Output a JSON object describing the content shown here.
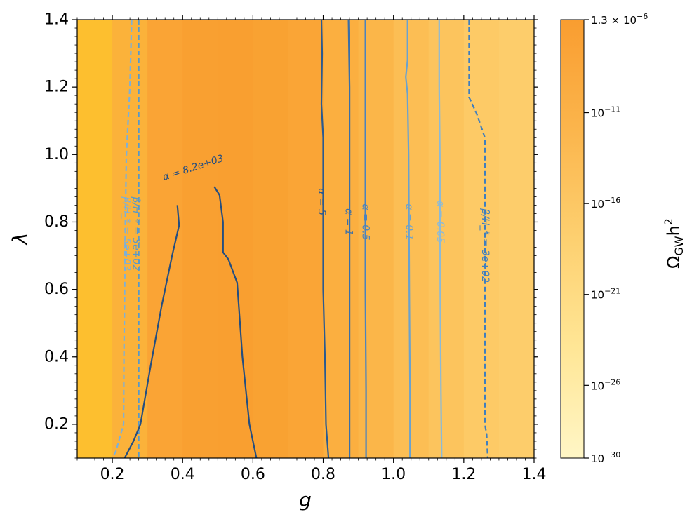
{
  "chart_data": {
    "type": "contour",
    "xlabel": "g",
    "ylabel": "λ",
    "xlim": [
      0.1,
      1.4
    ],
    "ylim": [
      0.1,
      1.4
    ],
    "x_ticks": [
      {
        "value": 0.2,
        "label": "0.2"
      },
      {
        "value": 0.4,
        "label": "0.4"
      },
      {
        "value": 0.6,
        "label": "0.6"
      },
      {
        "value": 0.8,
        "label": "0.8"
      },
      {
        "value": 1.0,
        "label": "1.0"
      },
      {
        "value": 1.2,
        "label": "1.2"
      },
      {
        "value": 1.4,
        "label": "1.4"
      }
    ],
    "y_ticks": [
      {
        "value": 0.2,
        "label": "0.2"
      },
      {
        "value": 0.4,
        "label": "0.4"
      },
      {
        "value": 0.6,
        "label": "0.6"
      },
      {
        "value": 0.8,
        "label": "0.8"
      },
      {
        "value": 1.0,
        "label": "1.0"
      },
      {
        "value": 1.2,
        "label": "1.2"
      },
      {
        "value": 1.4,
        "label": "1.4"
      }
    ],
    "background": {
      "quantity": "Ω_GW h^2",
      "columns": [
        {
          "g": [
            0.1,
            0.2
          ],
          "color": "#fdbf2f"
        },
        {
          "g": [
            0.2,
            0.3
          ],
          "color": "#fbb23a"
        },
        {
          "g": [
            0.3,
            0.4
          ],
          "color": "#faa435"
        },
        {
          "g": [
            0.4,
            0.5
          ],
          "color": "#f9a031"
        },
        {
          "g": [
            0.5,
            0.6
          ],
          "color": "#f99f30"
        },
        {
          "g": [
            0.6,
            0.7
          ],
          "color": "#f9a232"
        },
        {
          "g": [
            0.7,
            0.8
          ],
          "color": "#faa536"
        },
        {
          "g": [
            0.8,
            0.9
          ],
          "color": "#fbaf40"
        },
        {
          "g": [
            0.9,
            1.0
          ],
          "color": "#fbb649"
        },
        {
          "g": [
            1.0,
            1.1
          ],
          "color": "#fcbe54"
        },
        {
          "g": [
            1.1,
            1.2
          ],
          "color": "#fcc45d"
        },
        {
          "g": [
            1.2,
            1.3
          ],
          "color": "#fdca66"
        },
        {
          "g": [
            1.3,
            1.4
          ],
          "color": "#fdcd6b"
        }
      ]
    },
    "contours": [
      {
        "label": "β/H_* = 5e+03",
        "style": "dashed",
        "color": "#7db0d8",
        "points": [
          [
            0.255,
            1.4
          ],
          [
            0.25,
            1.2
          ],
          [
            0.245,
            1.1
          ],
          [
            0.24,
            1.0
          ],
          [
            0.237,
            0.8
          ],
          [
            0.235,
            0.6
          ],
          [
            0.233,
            0.4
          ],
          [
            0.232,
            0.2
          ],
          [
            0.21,
            0.12
          ],
          [
            0.2,
            0.1
          ]
        ],
        "label_at": [
          0.24,
          0.765
        ]
      },
      {
        "label": "β/H_* = 3e+02",
        "style": "dashed",
        "color": "#5599cc",
        "points": [
          [
            0.275,
            1.4
          ],
          [
            0.275,
            1.2
          ],
          [
            0.275,
            1.0
          ],
          [
            0.275,
            0.8
          ],
          [
            0.275,
            0.6
          ],
          [
            0.275,
            0.4
          ],
          [
            0.275,
            0.2
          ],
          [
            0.275,
            0.1
          ]
        ],
        "label_at": [
          0.267,
          0.765
        ]
      },
      {
        "label": "α = 8.2e+03",
        "style": "solid",
        "color": "#244e80",
        "points": [
          [
            0.385,
            0.85
          ],
          [
            0.39,
            0.79
          ],
          [
            0.37,
            0.7
          ],
          [
            0.34,
            0.55
          ],
          [
            0.31,
            0.38
          ],
          [
            0.28,
            0.2
          ],
          [
            0.26,
            0.15
          ],
          [
            0.235,
            0.1
          ]
        ],
        "label_at": [
          0.43,
          0.96
        ],
        "label_angle": -18
      },
      {
        "label": "",
        "style": "solid",
        "color": "#244e80",
        "points": [
          [
            0.49,
            0.905
          ],
          [
            0.505,
            0.88
          ],
          [
            0.515,
            0.8
          ],
          [
            0.515,
            0.71
          ],
          [
            0.53,
            0.69
          ],
          [
            0.555,
            0.62
          ],
          [
            0.57,
            0.4
          ],
          [
            0.59,
            0.2
          ],
          [
            0.61,
            0.1
          ]
        ]
      },
      {
        "label": "α = 5",
        "style": "solid",
        "color": "#2a5a90",
        "points": [
          [
            0.795,
            1.4
          ],
          [
            0.797,
            1.3
          ],
          [
            0.795,
            1.15
          ],
          [
            0.8,
            1.05
          ],
          [
            0.8,
            0.6
          ],
          [
            0.805,
            0.4
          ],
          [
            0.808,
            0.2
          ],
          [
            0.815,
            0.1
          ]
        ],
        "label_at": [
          0.795,
          0.86
        ]
      },
      {
        "label": "α = 1",
        "style": "solid",
        "color": "#3a6fa8",
        "points": [
          [
            0.872,
            1.4
          ],
          [
            0.875,
            1.2
          ],
          [
            0.875,
            1.0
          ],
          [
            0.875,
            0.6
          ],
          [
            0.875,
            0.3
          ],
          [
            0.875,
            0.1
          ]
        ],
        "label_at": [
          0.872,
          0.8
        ]
      },
      {
        "label": "α = 0.5",
        "style": "solid",
        "color": "#4b83bd",
        "points": [
          [
            0.92,
            1.4
          ],
          [
            0.92,
            1.2
          ],
          [
            0.92,
            1.0
          ],
          [
            0.92,
            0.6
          ],
          [
            0.922,
            0.3
          ],
          [
            0.922,
            0.1
          ]
        ],
        "label_at": [
          0.92,
          0.8
        ]
      },
      {
        "label": "α = 0.1",
        "style": "solid",
        "color": "#6aa2cf",
        "points": [
          [
            1.04,
            1.4
          ],
          [
            1.04,
            1.28
          ],
          [
            1.035,
            1.23
          ],
          [
            1.04,
            1.18
          ],
          [
            1.043,
            1.0
          ],
          [
            1.045,
            0.6
          ],
          [
            1.047,
            0.3
          ],
          [
            1.047,
            0.1
          ]
        ],
        "label_at": [
          1.044,
          0.8
        ]
      },
      {
        "label": "α = 0.05",
        "style": "solid",
        "color": "#8bbad8",
        "points": [
          [
            1.13,
            1.4
          ],
          [
            1.13,
            1.2
          ],
          [
            1.132,
            1.0
          ],
          [
            1.133,
            0.6
          ],
          [
            1.135,
            0.3
          ],
          [
            1.137,
            0.1
          ]
        ],
        "label_at": [
          1.132,
          0.8
        ]
      },
      {
        "label": "β/H_* = 3e+02",
        "style": "dashed",
        "color": "#3f7fbf",
        "points": [
          [
            1.215,
            1.4
          ],
          [
            1.215,
            1.17
          ],
          [
            1.237,
            1.12
          ],
          [
            1.26,
            1.05
          ],
          [
            1.26,
            0.95
          ],
          [
            1.26,
            0.6
          ],
          [
            1.26,
            0.2
          ],
          [
            1.265,
            0.17
          ],
          [
            1.268,
            0.1
          ]
        ],
        "label_at": [
          1.26,
          0.73
        ]
      }
    ],
    "colorbar": {
      "label": "Ω_GW h^2",
      "scale": "log",
      "range": [
        1e-30,
        1.3e-06
      ],
      "ticks": [
        {
          "exponent": -30,
          "label": "10^-30"
        },
        {
          "exponent": -26,
          "label": "10^-26"
        },
        {
          "exponent": -21,
          "label": "10^-21"
        },
        {
          "exponent": -16,
          "label": "10^-16"
        },
        {
          "exponent": -11,
          "label": "10^-11"
        },
        {
          "exponent": -5.886,
          "label": "1.3 × 10^-6"
        }
      ],
      "colors": [
        "#fff6c6",
        "#ffe696",
        "#fdd070",
        "#fbb54c",
        "#f99d30"
      ]
    }
  }
}
